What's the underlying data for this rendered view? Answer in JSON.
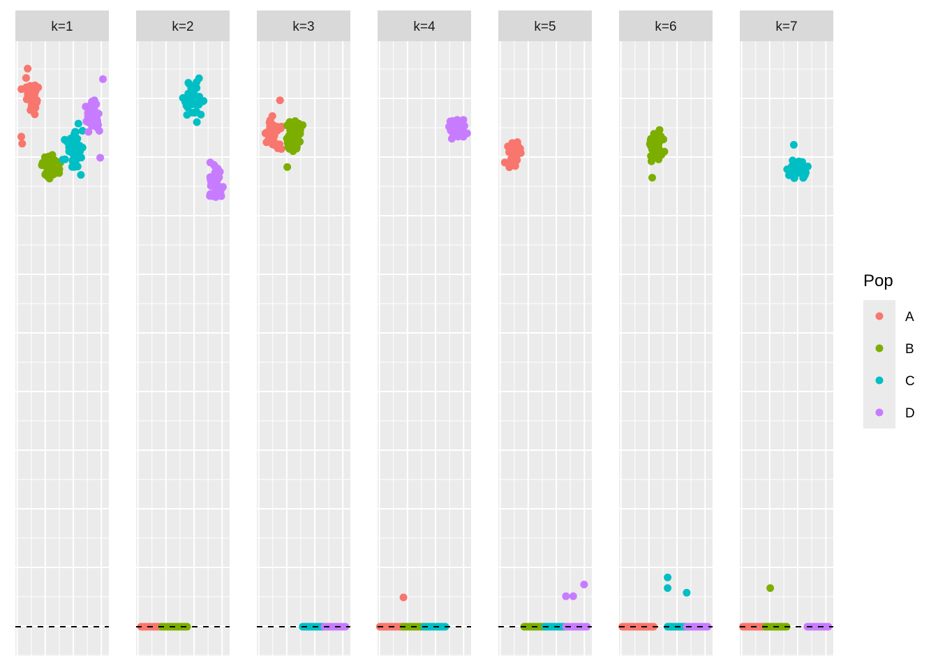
{
  "chart_data": {
    "type": "scatter",
    "facet_prefix": "k=",
    "facets": [
      "k=1",
      "k=2",
      "k=3",
      "k=4",
      "k=5",
      "k=6",
      "k=7"
    ],
    "baseline": {
      "y": 0,
      "style": "dashed",
      "color": "#000000"
    },
    "ylim": [
      -0.25,
      5.1
    ],
    "xlim": [
      0,
      1
    ],
    "grid": true,
    "legend": {
      "title": "Pop",
      "placement": "right",
      "entries": [
        {
          "label": "A",
          "color": "#F8766D"
        },
        {
          "label": "B",
          "color": "#7CAE00"
        },
        {
          "label": "C",
          "color": "#00BFC4"
        },
        {
          "label": "D",
          "color": "#C77CFF"
        }
      ]
    },
    "panels": [
      {
        "label": "k=1",
        "clusters": [
          {
            "pop": "A",
            "x": [
              0.03,
              0.3
            ],
            "y": [
              4.3,
              4.74
            ],
            "n": 40
          },
          {
            "pop": "A",
            "points": [
              [
                0.05,
                4.18
              ],
              [
                0.06,
                4.12
              ],
              [
                0.12,
                4.76
              ]
            ]
          },
          {
            "pop": "B",
            "x": [
              0.22,
              0.52
            ],
            "y": [
              3.77,
              4.07
            ],
            "n": 36
          },
          {
            "pop": "C",
            "x": [
              0.48,
              0.8
            ],
            "y": [
              3.8,
              4.35
            ],
            "n": 40
          },
          {
            "pop": "D",
            "x": [
              0.7,
              0.98
            ],
            "y": [
              4.17,
              4.55
            ],
            "n": 40
          },
          {
            "pop": "D",
            "points": [
              [
                0.92,
                4.0
              ],
              [
                0.95,
                4.67
              ]
            ]
          }
        ],
        "baseline_points": []
      },
      {
        "label": "k=2",
        "clusters": [
          {
            "pop": "C",
            "x": [
              0.47,
              0.78
            ],
            "y": [
              4.25,
              4.73
            ],
            "n": 42
          },
          {
            "pop": "D",
            "x": [
              0.73,
              1.0
            ],
            "y": [
              3.55,
              4.0
            ],
            "n": 38
          }
        ],
        "baseline_points": [
          {
            "pop": "A",
            "x": [
              0.04,
              0.27
            ]
          },
          {
            "pop": "B",
            "x": [
              0.27,
              0.55
            ]
          }
        ]
      },
      {
        "label": "k=3",
        "clusters": [
          {
            "pop": "A",
            "x": [
              0.02,
              0.3
            ],
            "y": [
              4.0,
              4.42
            ],
            "n": 45
          },
          {
            "pop": "A",
            "points": [
              [
                0.24,
                4.49
              ]
            ]
          },
          {
            "pop": "B",
            "x": [
              0.24,
              0.52
            ],
            "y": [
              3.97,
              4.38
            ],
            "n": 45
          },
          {
            "pop": "B",
            "points": [
              [
                0.32,
                3.92
              ]
            ]
          }
        ],
        "baseline_points": [
          {
            "pop": "C",
            "x": [
              0.49,
              0.73
            ]
          },
          {
            "pop": "D",
            "x": [
              0.73,
              0.98
            ]
          }
        ]
      },
      {
        "label": "k=4",
        "clusters": [
          {
            "pop": "D",
            "x": [
              0.72,
              1.0
            ],
            "y": [
              4.06,
              4.41
            ],
            "n": 38
          }
        ],
        "baseline_points": [
          {
            "pop": "A",
            "x": [
              0.01,
              0.27
            ]
          },
          {
            "pop": "B",
            "x": [
              0.27,
              0.5
            ]
          },
          {
            "pop": "C",
            "x": [
              0.5,
              0.75
            ]
          }
        ],
        "outliers": [
          {
            "pop": "A",
            "x": 0.27,
            "y": 0.25
          }
        ]
      },
      {
        "label": "k=5",
        "clusters": [
          {
            "pop": "A",
            "x": [
              0.02,
              0.3
            ],
            "y": [
              3.85,
              4.2
            ],
            "n": 40
          }
        ],
        "baseline_points": [
          {
            "pop": "B",
            "x": [
              0.27,
              0.5
            ]
          },
          {
            "pop": "C",
            "x": [
              0.5,
              0.73
            ]
          },
          {
            "pop": "D",
            "x": [
              0.73,
              0.98
            ]
          }
        ],
        "outliers": [
          {
            "pop": "D",
            "x": 0.73,
            "y": 0.26
          },
          {
            "pop": "D",
            "x": 0.81,
            "y": 0.26
          },
          {
            "pop": "D",
            "x": 0.93,
            "y": 0.36
          }
        ]
      },
      {
        "label": "k=6",
        "clusters": [
          {
            "pop": "B",
            "x": [
              0.25,
              0.52
            ],
            "y": [
              3.92,
              4.31
            ],
            "n": 40
          },
          {
            "pop": "B",
            "points": [
              [
                0.35,
                3.83
              ]
            ]
          }
        ],
        "baseline_points": [
          {
            "pop": "A",
            "x": [
              0.02,
              0.37
            ]
          },
          {
            "pop": "C",
            "x": [
              0.52,
              0.73
            ]
          },
          {
            "pop": "D",
            "x": [
              0.73,
              0.98
            ]
          }
        ],
        "outliers": [
          {
            "pop": "C",
            "x": 0.52,
            "y": 0.42
          },
          {
            "pop": "C",
            "x": 0.52,
            "y": 0.33
          },
          {
            "pop": "C",
            "x": 0.73,
            "y": 0.29
          }
        ]
      },
      {
        "label": "k=7",
        "clusters": [
          {
            "pop": "C",
            "x": [
              0.47,
              0.78
            ],
            "y": [
              3.76,
              4.05
            ],
            "n": 45
          },
          {
            "pop": "C",
            "points": [
              [
                0.58,
                4.11
              ]
            ]
          }
        ],
        "baseline_points": [
          {
            "pop": "A",
            "x": [
              0.02,
              0.27
            ]
          },
          {
            "pop": "B",
            "x": [
              0.27,
              0.52
            ]
          },
          {
            "pop": "D",
            "x": [
              0.73,
              0.98
            ]
          }
        ],
        "outliers": [
          {
            "pop": "B",
            "x": 0.32,
            "y": 0.33
          }
        ]
      }
    ]
  }
}
